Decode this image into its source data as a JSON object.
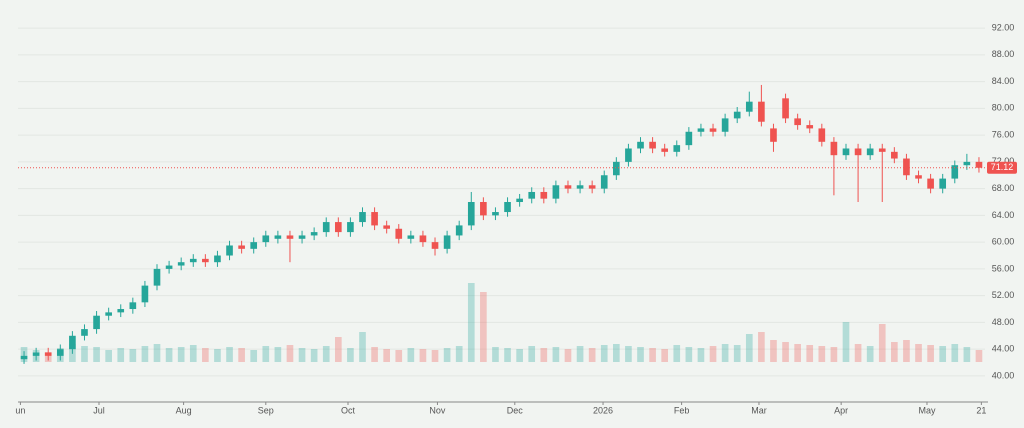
{
  "chart_data": {
    "type": "candlestick",
    "ylim": [
      36.1,
      96.2
    ],
    "yticks": [
      {
        "value": 40,
        "label": "40.00"
      },
      {
        "value": 44,
        "label": "44.00"
      },
      {
        "value": 48,
        "label": "48.00"
      },
      {
        "value": 52,
        "label": "52.00"
      },
      {
        "value": 56,
        "label": "56.00"
      },
      {
        "value": 60,
        "label": "60.00"
      },
      {
        "value": 64,
        "label": "64.00"
      },
      {
        "value": 68,
        "label": "68.00"
      },
      {
        "value": 72,
        "label": "72.00"
      },
      {
        "value": 76,
        "label": "76.00"
      },
      {
        "value": 80,
        "label": "80.00"
      },
      {
        "value": 84,
        "label": "84.00"
      },
      {
        "value": 88,
        "label": "88.00"
      },
      {
        "value": 92,
        "label": "92.00"
      }
    ],
    "xlim": [
      -0.5,
      79.5
    ],
    "xticks": [
      {
        "value": -0.3,
        "label": "un"
      },
      {
        "value": 6.2,
        "label": "Jul"
      },
      {
        "value": 13.2,
        "label": "Aug"
      },
      {
        "value": 20,
        "label": "Sep"
      },
      {
        "value": 26.8,
        "label": "Oct"
      },
      {
        "value": 34.2,
        "label": "Nov"
      },
      {
        "value": 40.6,
        "label": "Dec"
      },
      {
        "value": 47.9,
        "label": "2026"
      },
      {
        "value": 54.4,
        "label": "Feb"
      },
      {
        "value": 60.8,
        "label": "Mar"
      },
      {
        "value": 67.6,
        "label": "Apr"
      },
      {
        "value": 74.7,
        "label": "May"
      },
      {
        "value": 79.2,
        "label": "21"
      }
    ],
    "grid": true,
    "up_color": "#26a69a",
    "down_color": "#ef5350",
    "open": [
      42.5,
      43,
      43.5,
      43,
      44,
      46,
      47,
      49,
      49.5,
      50,
      51,
      53.5,
      56,
      56.5,
      57,
      57.5,
      57,
      58,
      59.5,
      59,
      60,
      60.5,
      61,
      60.5,
      61,
      61.5,
      63,
      61.5,
      63,
      64.5,
      62.5,
      62,
      60.5,
      61,
      60,
      59,
      61,
      62.5,
      66,
      64,
      64.5,
      66,
      66.5,
      67.5,
      66.5,
      68.5,
      68,
      68.5,
      68,
      70,
      72,
      74,
      75,
      74,
      73.5,
      74.5,
      76.5,
      77,
      76.5,
      78.5,
      79.5,
      81,
      77,
      81.5,
      78.5,
      77.5,
      77,
      75,
      73,
      74,
      73,
      74,
      73.5,
      72.5,
      70,
      69.5,
      68,
      69.5,
      71.5,
      72
    ],
    "high": [
      43.7,
      44.2,
      44.2,
      44.7,
      46.7,
      47.7,
      49.7,
      50.2,
      50.7,
      51.7,
      54.2,
      56.7,
      57.2,
      57.7,
      58.2,
      58.2,
      58.7,
      60.2,
      60.2,
      60.7,
      61.7,
      61.7,
      61.7,
      61.7,
      62.2,
      63.7,
      63.7,
      63.7,
      65.2,
      65.2,
      63.2,
      62.7,
      61.7,
      61.7,
      60.7,
      61.7,
      63.2,
      67.5,
      66.7,
      65.2,
      66.7,
      67.2,
      68.2,
      68.2,
      69.2,
      69.2,
      69.2,
      69.2,
      70.7,
      72.7,
      74.7,
      75.7,
      75.7,
      74.7,
      75.2,
      77.2,
      77.7,
      77.7,
      79.2,
      80.2,
      82.5,
      83.5,
      77.7,
      82.2,
      79.2,
      78.2,
      77.7,
      75.7,
      74.7,
      74.7,
      74.7,
      74.7,
      74.2,
      73.2,
      70.7,
      70.2,
      70.2,
      72.2,
      73.2,
      72.7
    ],
    "low": [
      41.8,
      42.3,
      42.3,
      42.3,
      43.3,
      45.3,
      46.3,
      48.3,
      48.8,
      49.3,
      50.3,
      52.8,
      55.3,
      55.8,
      56.3,
      56.3,
      56.3,
      57.3,
      58.3,
      58.3,
      59.3,
      59.8,
      57,
      59.8,
      60.3,
      60.8,
      60.8,
      60.8,
      62.3,
      61.8,
      61.3,
      59.8,
      59.8,
      59.3,
      58,
      58.3,
      60.3,
      61.8,
      63.3,
      63.3,
      63.8,
      65.3,
      65.8,
      65.8,
      65.8,
      67.3,
      67.3,
      67.3,
      67.3,
      69.3,
      71.3,
      73.3,
      73.3,
      72.8,
      72.8,
      73.8,
      75.8,
      75.8,
      75.8,
      77.8,
      78.8,
      77.3,
      73.5,
      77.8,
      76.8,
      76.3,
      74.3,
      67,
      72.3,
      66,
      72.3,
      66,
      71.8,
      69.3,
      68.8,
      67.3,
      67.3,
      68.8,
      70.8,
      70.4
    ],
    "close": [
      43,
      43.5,
      43,
      44,
      46,
      47,
      49,
      49.5,
      50,
      51,
      53.5,
      56,
      56.5,
      57,
      57.5,
      57,
      58,
      59.5,
      59,
      60,
      61,
      61,
      60.5,
      61,
      61.5,
      63,
      61.5,
      63,
      64.5,
      62.5,
      62,
      60.5,
      61,
      60,
      59,
      61,
      62.5,
      66,
      64,
      64.5,
      66,
      66.5,
      67.5,
      66.5,
      68.5,
      68,
      68.5,
      68,
      70,
      72,
      74,
      75,
      74,
      73.5,
      74.5,
      76.5,
      77,
      76.5,
      78.5,
      79.5,
      81,
      78,
      75,
      78.5,
      77.5,
      77,
      75,
      73,
      74,
      73,
      74,
      73.5,
      72.5,
      70,
      69.5,
      68,
      69.5,
      71.5,
      72,
      71.12
    ],
    "volume_ylim": [
      0,
      100
    ],
    "volume": [
      15,
      12,
      10,
      14,
      18,
      16,
      15,
      12,
      14,
      13,
      16,
      18,
      14,
      15,
      17,
      14,
      13,
      15,
      14,
      12,
      16,
      15,
      17,
      14,
      13,
      16,
      25,
      14,
      30,
      15,
      13,
      12,
      14,
      13,
      12,
      14,
      16,
      79,
      70,
      15,
      14,
      13,
      16,
      14,
      15,
      13,
      16,
      14,
      17,
      18,
      16,
      15,
      14,
      13,
      17,
      15,
      14,
      16,
      18,
      17,
      28,
      30,
      22,
      20,
      18,
      17,
      16,
      15,
      40,
      18,
      16,
      38,
      20,
      22,
      18,
      17,
      16,
      18,
      15,
      12
    ],
    "last_price": 71.12
  }
}
